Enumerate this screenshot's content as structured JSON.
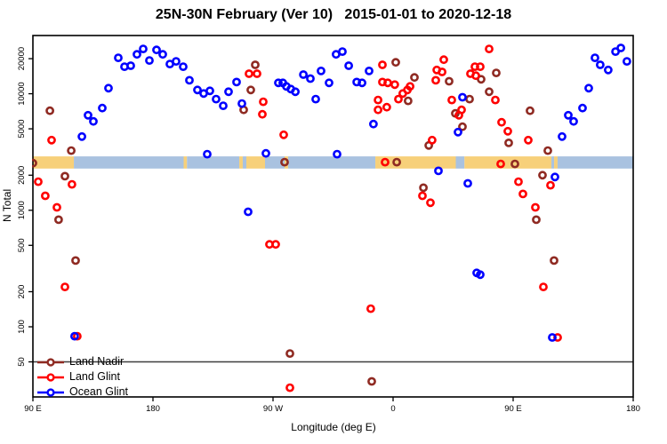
{
  "chart_data": {
    "type": "scatter",
    "title": "25N-30N February (Ver 10)   2015-01-01 to 2020-12-18",
    "xlabel": "Longitude (deg E)",
    "ylabel": "N Total",
    "x_axis": {
      "range": [
        90,
        540
      ],
      "ticks": [
        {
          "lon": 90,
          "label": "90 E"
        },
        {
          "lon": 180,
          "label": "180"
        },
        {
          "lon": 270,
          "label": "90 W"
        },
        {
          "lon": 360,
          "label": "0"
        },
        {
          "lon": 450,
          "label": "90 E"
        },
        {
          "lon": 540,
          "label": "180"
        }
      ]
    },
    "y_axis": {
      "scale": "log",
      "range": [
        25,
        31600
      ],
      "ticks": [
        50,
        100,
        200,
        500,
        1000,
        2000,
        5000,
        10000,
        20000
      ]
    },
    "reference_line": {
      "value": 50,
      "color": "#3f3f3f"
    },
    "map_band": {
      "value_range": [
        2280,
        2900
      ],
      "land_color": "#f7d07a",
      "ocean_color": "#a9c2e0",
      "segments": [
        {
          "type": "land",
          "from": 90,
          "to": 120.7
        },
        {
          "type": "ocean",
          "from": 120.7,
          "to": 203
        },
        {
          "type": "land",
          "from": 203,
          "to": 205.5
        },
        {
          "type": "ocean",
          "from": 205.5,
          "to": 244.7
        },
        {
          "type": "land",
          "from": 244.7,
          "to": 247.3
        },
        {
          "type": "ocean",
          "from": 247.3,
          "to": 250
        },
        {
          "type": "land",
          "from": 250,
          "to": 264
        },
        {
          "type": "ocean",
          "from": 264,
          "to": 278.7
        },
        {
          "type": "land",
          "from": 278.7,
          "to": 281.3
        },
        {
          "type": "ocean",
          "from": 281.3,
          "to": 346.7
        },
        {
          "type": "land",
          "from": 346.7,
          "to": 407
        },
        {
          "type": "ocean",
          "from": 407,
          "to": 413.5
        },
        {
          "type": "land",
          "from": 413.5,
          "to": 478.7
        },
        {
          "type": "ocean",
          "from": 478.7,
          "to": 480.7
        },
        {
          "type": "land",
          "from": 480.7,
          "to": 483.3
        },
        {
          "type": "ocean",
          "from": 483.3,
          "to": 540
        }
      ]
    },
    "series": [
      {
        "name": "Land Nadir",
        "color": "#8f2a22",
        "points": [
          [
            102.7,
            7150
          ],
          [
            118.7,
            3250
          ],
          [
            90,
            2540
          ],
          [
            114,
            1960
          ],
          [
            109.3,
            830
          ],
          [
            122,
            370
          ],
          [
            256.7,
            17700
          ],
          [
            253.3,
            10780
          ],
          [
            248,
            7280
          ],
          [
            278.7,
            2590
          ],
          [
            282.7,
            59
          ],
          [
            344,
            34
          ],
          [
            362,
            18600
          ],
          [
            371.3,
            8690
          ],
          [
            376,
            13800
          ],
          [
            362.7,
            2590
          ],
          [
            386.7,
            3600
          ],
          [
            382.7,
            1560
          ],
          [
            402,
            12800
          ],
          [
            426,
            13300
          ],
          [
            437.3,
            15100
          ],
          [
            432,
            10400
          ],
          [
            417.3,
            9000
          ],
          [
            406.7,
            6780
          ],
          [
            412,
            5210
          ],
          [
            446.7,
            3790
          ],
          [
            451.3,
            2500
          ],
          [
            462.7,
            7150
          ],
          [
            472,
            2000
          ],
          [
            476,
            3250
          ],
          [
            467.3,
            830
          ],
          [
            480.7,
            370
          ]
        ]
      },
      {
        "name": "Land Glint",
        "color": "#ff0000",
        "points": [
          [
            104,
            4000
          ],
          [
            94,
            1760
          ],
          [
            119.3,
            1670
          ],
          [
            99.3,
            1330
          ],
          [
            108,
            1060
          ],
          [
            114,
            220
          ],
          [
            123.3,
            83
          ],
          [
            252,
            14850
          ],
          [
            258,
            14850
          ],
          [
            262.7,
            8530
          ],
          [
            262,
            6660
          ],
          [
            278,
            4440
          ],
          [
            267.3,
            510
          ],
          [
            272,
            510
          ],
          [
            282.7,
            30
          ],
          [
            343.3,
            143
          ],
          [
            352,
            17700
          ],
          [
            352,
            12600
          ],
          [
            356,
            12400
          ],
          [
            361.3,
            11970
          ],
          [
            348.7,
            8840
          ],
          [
            348.7,
            7280
          ],
          [
            355.3,
            7670
          ],
          [
            364,
            9000
          ],
          [
            367.3,
            10050
          ],
          [
            370.7,
            10780
          ],
          [
            372.7,
            11560
          ],
          [
            354,
            2590
          ],
          [
            382,
            1330
          ],
          [
            388,
            1160
          ],
          [
            389.3,
            4000
          ],
          [
            392.7,
            16000
          ],
          [
            396.7,
            15400
          ],
          [
            392,
            13050
          ],
          [
            398,
            19600
          ],
          [
            404,
            8840
          ],
          [
            411.3,
            7280
          ],
          [
            409.3,
            6540
          ],
          [
            418,
            14850
          ],
          [
            421.3,
            17060
          ],
          [
            425.3,
            17060
          ],
          [
            422,
            14300
          ],
          [
            432,
            24260
          ],
          [
            436.7,
            8840
          ],
          [
            440.7,
            2500
          ],
          [
            441.3,
            5690
          ],
          [
            446,
            4770
          ],
          [
            461.3,
            4000
          ],
          [
            454,
            1760
          ],
          [
            457.3,
            1380
          ],
          [
            466.7,
            1060
          ],
          [
            472.7,
            220
          ],
          [
            478,
            1640
          ],
          [
            483.3,
            81
          ]
        ]
      },
      {
        "name": "Ocean Glint",
        "color": "#0000ff",
        "points": [
          [
            126.7,
            4290
          ],
          [
            131.3,
            6540
          ],
          [
            135.3,
            5790
          ],
          [
            142,
            7530
          ],
          [
            146.7,
            11160
          ],
          [
            154,
            20350
          ],
          [
            158.7,
            17060
          ],
          [
            163.3,
            17400
          ],
          [
            168,
            21800
          ],
          [
            172.7,
            24260
          ],
          [
            177.3,
            19300
          ],
          [
            182.7,
            23800
          ],
          [
            187.3,
            21800
          ],
          [
            192.7,
            18000
          ],
          [
            197.3,
            18960
          ],
          [
            202.7,
            17060
          ],
          [
            207.3,
            13050
          ],
          [
            213.3,
            10780
          ],
          [
            218,
            10050
          ],
          [
            222.7,
            10590
          ],
          [
            227.3,
            9000
          ],
          [
            232.7,
            7880
          ],
          [
            236.7,
            10400
          ],
          [
            242.7,
            12600
          ],
          [
            220.7,
            3030
          ],
          [
            246.7,
            8240
          ],
          [
            251.3,
            970
          ],
          [
            264.7,
            3080
          ],
          [
            274,
            12400
          ],
          [
            277.3,
            12400
          ],
          [
            280,
            11560
          ],
          [
            283.3,
            10970
          ],
          [
            286.7,
            10400
          ],
          [
            292.7,
            14600
          ],
          [
            298,
            13500
          ],
          [
            302,
            9000
          ],
          [
            306,
            15700
          ],
          [
            312,
            12400
          ],
          [
            317.3,
            21800
          ],
          [
            318,
            3030
          ],
          [
            322,
            23000
          ],
          [
            326.7,
            17400
          ],
          [
            332.7,
            12600
          ],
          [
            336.7,
            12400
          ],
          [
            342,
            15700
          ],
          [
            345.3,
            5490
          ],
          [
            394,
            2180
          ],
          [
            408.7,
            4680
          ],
          [
            412,
            9330
          ],
          [
            416,
            1700
          ],
          [
            422.7,
            290
          ],
          [
            425.3,
            280
          ],
          [
            121.3,
            83
          ],
          [
            481.3,
            1930
          ],
          [
            479.3,
            81
          ],
          [
            486.7,
            4290
          ],
          [
            491.3,
            6540
          ],
          [
            495.3,
            5790
          ],
          [
            502,
            7530
          ],
          [
            506.7,
            11160
          ],
          [
            511.3,
            20350
          ],
          [
            515.3,
            17700
          ],
          [
            521.3,
            16000
          ],
          [
            526.7,
            23000
          ],
          [
            530.7,
            24700
          ],
          [
            535.3,
            18960
          ]
        ]
      }
    ]
  }
}
